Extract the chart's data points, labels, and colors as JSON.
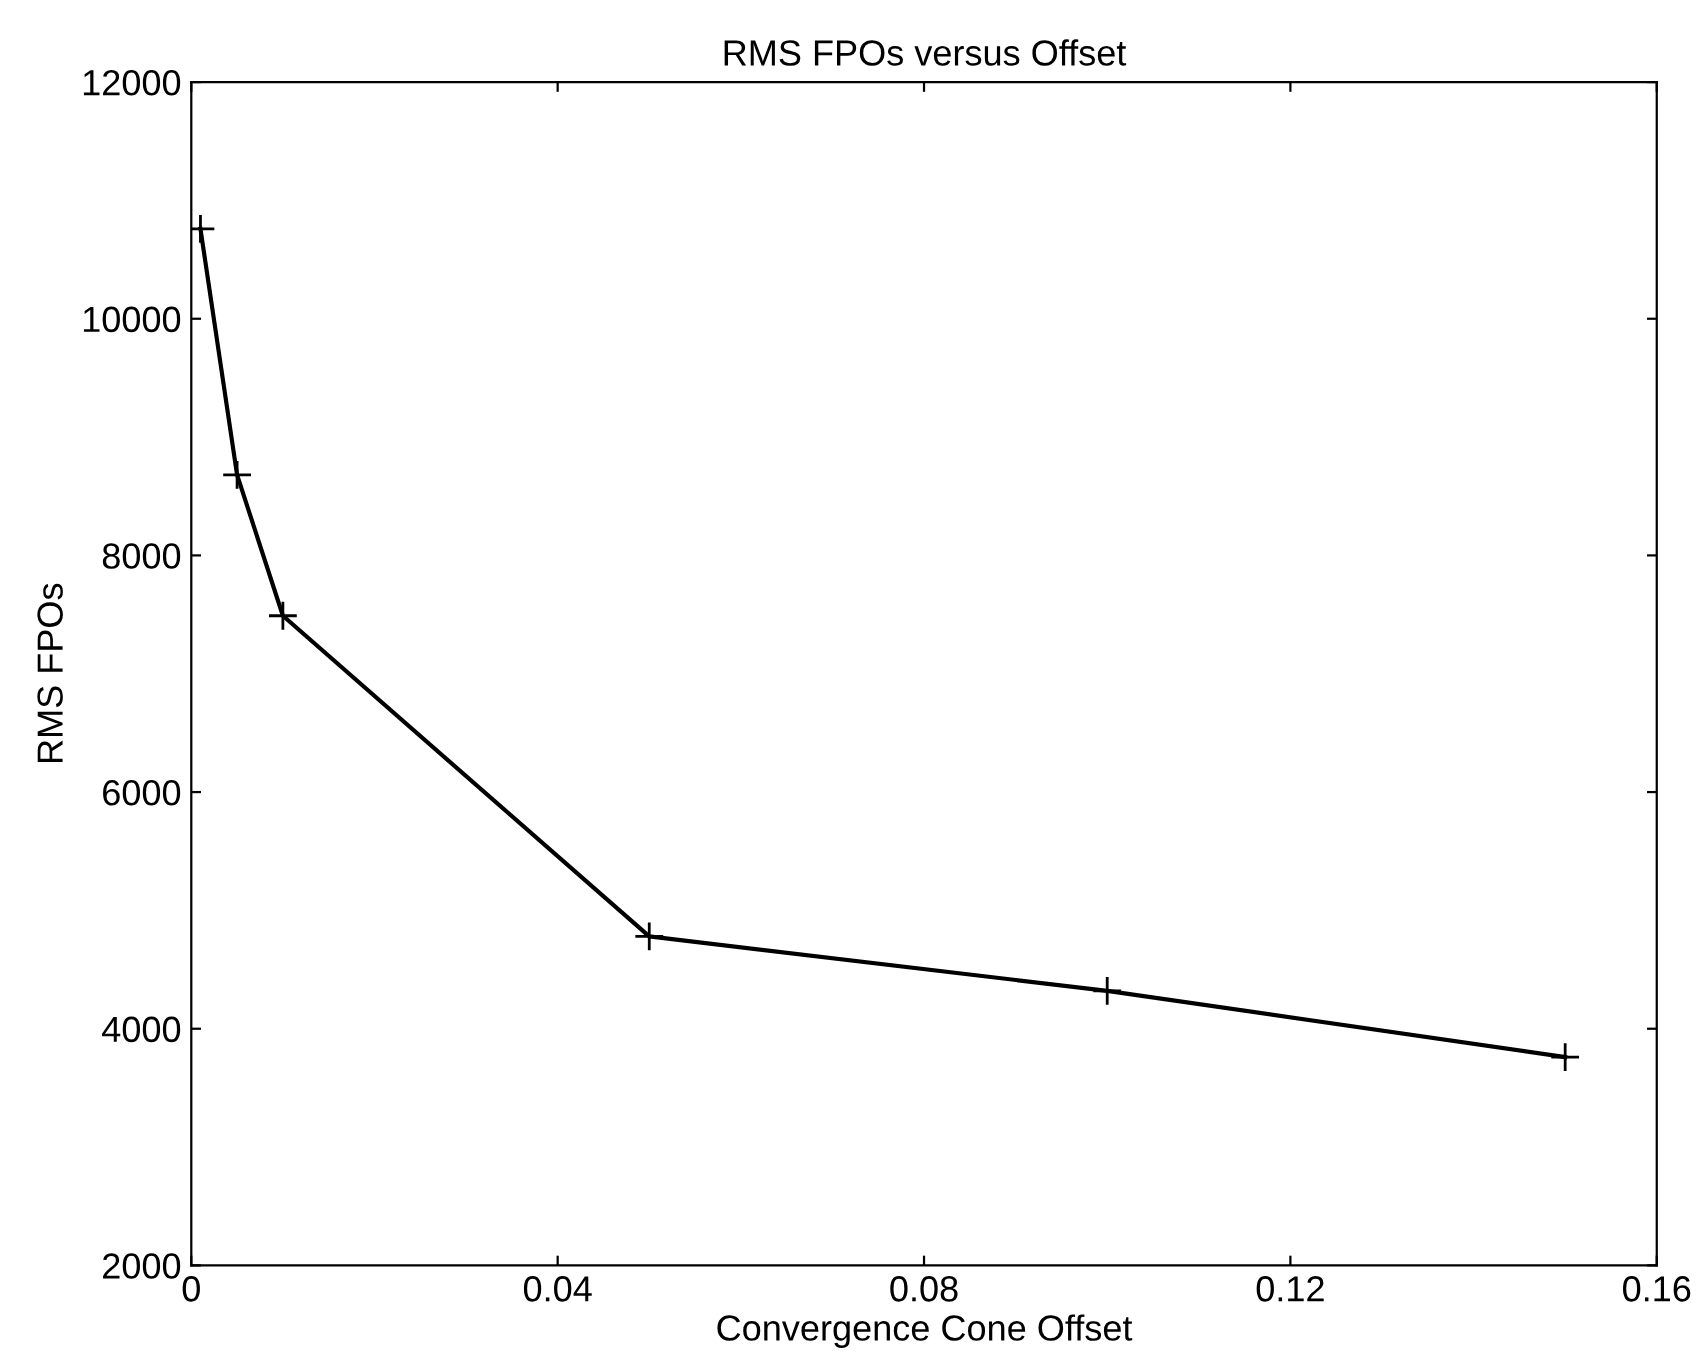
{
  "chart_data": {
    "type": "line",
    "title": "RMS FPOs versus Offset",
    "xlabel": "Convergence Cone Offset",
    "ylabel": "RMS FPOs",
    "x": [
      0.001,
      0.005,
      0.01,
      0.05,
      0.1,
      0.15
    ],
    "series": [
      {
        "color": "#000000",
        "values": [
          10760,
          8680,
          7490,
          4780,
          4320,
          3760
        ]
      }
    ],
    "xlim": [
      0,
      0.16
    ],
    "xticks": [
      0,
      0.04,
      0.08,
      0.12,
      0.16
    ],
    "ylim": [
      2000,
      12000
    ],
    "yticks": [
      2000,
      4000,
      6000,
      8000,
      10000,
      12000
    ],
    "grid": false,
    "marker": "cross",
    "line_style": "solid"
  }
}
